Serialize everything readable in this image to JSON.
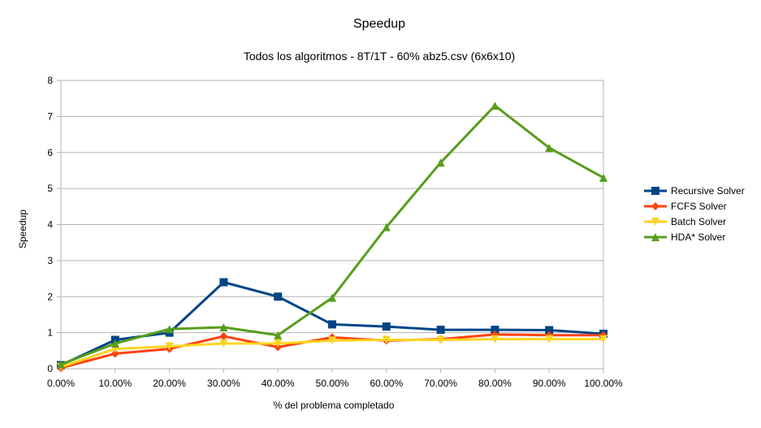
{
  "chart_data": {
    "type": "line",
    "title": "Speedup",
    "subtitle": "Todos los algoritmos - 8T/1T - 60% abz5.csv (6x6x10)",
    "xlabel": "% del problema completado",
    "ylabel": "Speedup",
    "categories": [
      "0.00%",
      "10.00%",
      "20.00%",
      "30.00%",
      "40.00%",
      "50.00%",
      "60.00%",
      "70.00%",
      "80.00%",
      "90.00%",
      "100.00%"
    ],
    "y_ticks": [
      "0",
      "1",
      "2",
      "3",
      "4",
      "5",
      "6",
      "7",
      "8"
    ],
    "ylim": [
      0,
      8
    ],
    "grid": true,
    "legend_position": "right",
    "series": [
      {
        "name": "Recursive Solver",
        "color": "#004586",
        "marker": "square",
        "values": [
          0.1,
          0.8,
          1.0,
          2.4,
          2.0,
          1.23,
          1.17,
          1.08,
          1.08,
          1.07,
          0.97
        ]
      },
      {
        "name": "FCFS Solver",
        "color": "#ff420e",
        "marker": "diamond",
        "values": [
          0.02,
          0.42,
          0.55,
          0.9,
          0.6,
          0.87,
          0.78,
          0.82,
          0.95,
          0.93,
          0.93
        ]
      },
      {
        "name": "Batch Solver",
        "color": "#ffd320",
        "marker": "triangle-down",
        "values": [
          0.05,
          0.55,
          0.62,
          0.7,
          0.7,
          0.78,
          0.8,
          0.8,
          0.82,
          0.82,
          0.82
        ]
      },
      {
        "name": "HDA* Solver",
        "color": "#579d1c",
        "marker": "triangle-up",
        "values": [
          0.12,
          0.7,
          1.1,
          1.15,
          0.93,
          1.97,
          3.93,
          5.72,
          7.3,
          6.13,
          5.3
        ]
      }
    ]
  }
}
